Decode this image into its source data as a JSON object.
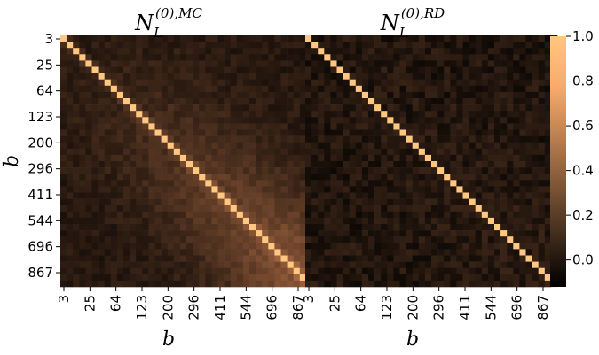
{
  "chart_data": [
    {
      "type": "heatmap",
      "title_base": "N",
      "title_sub": "L",
      "title_sup": "(0),MC",
      "xlabel": "b",
      "ylabel": "b",
      "x_tick_labels": [
        "3",
        "25",
        "64",
        "123",
        "200",
        "296",
        "411",
        "544",
        "696",
        "867"
      ],
      "y_tick_labels": [
        "3",
        "25",
        "64",
        "123",
        "200",
        "296",
        "411",
        "544",
        "696",
        "867"
      ],
      "grid_size": 40,
      "diagonal_value": 1.0,
      "off_diagonal_pattern": "elevated correlation (~0.1-0.35) in the central/lower-right block around the diagonal; near 0 in upper-left",
      "value_range": [
        -0.12,
        1.0
      ]
    },
    {
      "type": "heatmap",
      "title_base": "N",
      "title_sub": "L",
      "title_sup": "(0),RD",
      "xlabel": "b",
      "ylabel": "",
      "x_tick_labels": [
        "3",
        "25",
        "64",
        "123",
        "200",
        "296",
        "411",
        "544",
        "696",
        "867"
      ],
      "y_tick_labels": [],
      "grid_size": 40,
      "diagonal_value": 1.0,
      "off_diagonal_pattern": "mostly near 0 (-0.1 to 0.1) with weak structure",
      "value_range": [
        -0.12,
        1.0
      ]
    }
  ],
  "colorbar": {
    "cmap": "copper",
    "vmin": -0.12,
    "vmax": 1.0,
    "tick_values": [
      0.0,
      0.2,
      0.4,
      0.6,
      0.8,
      1.0
    ],
    "tick_labels": [
      "0.0",
      "0.2",
      "0.4",
      "0.6",
      "0.8",
      "1.0"
    ]
  }
}
